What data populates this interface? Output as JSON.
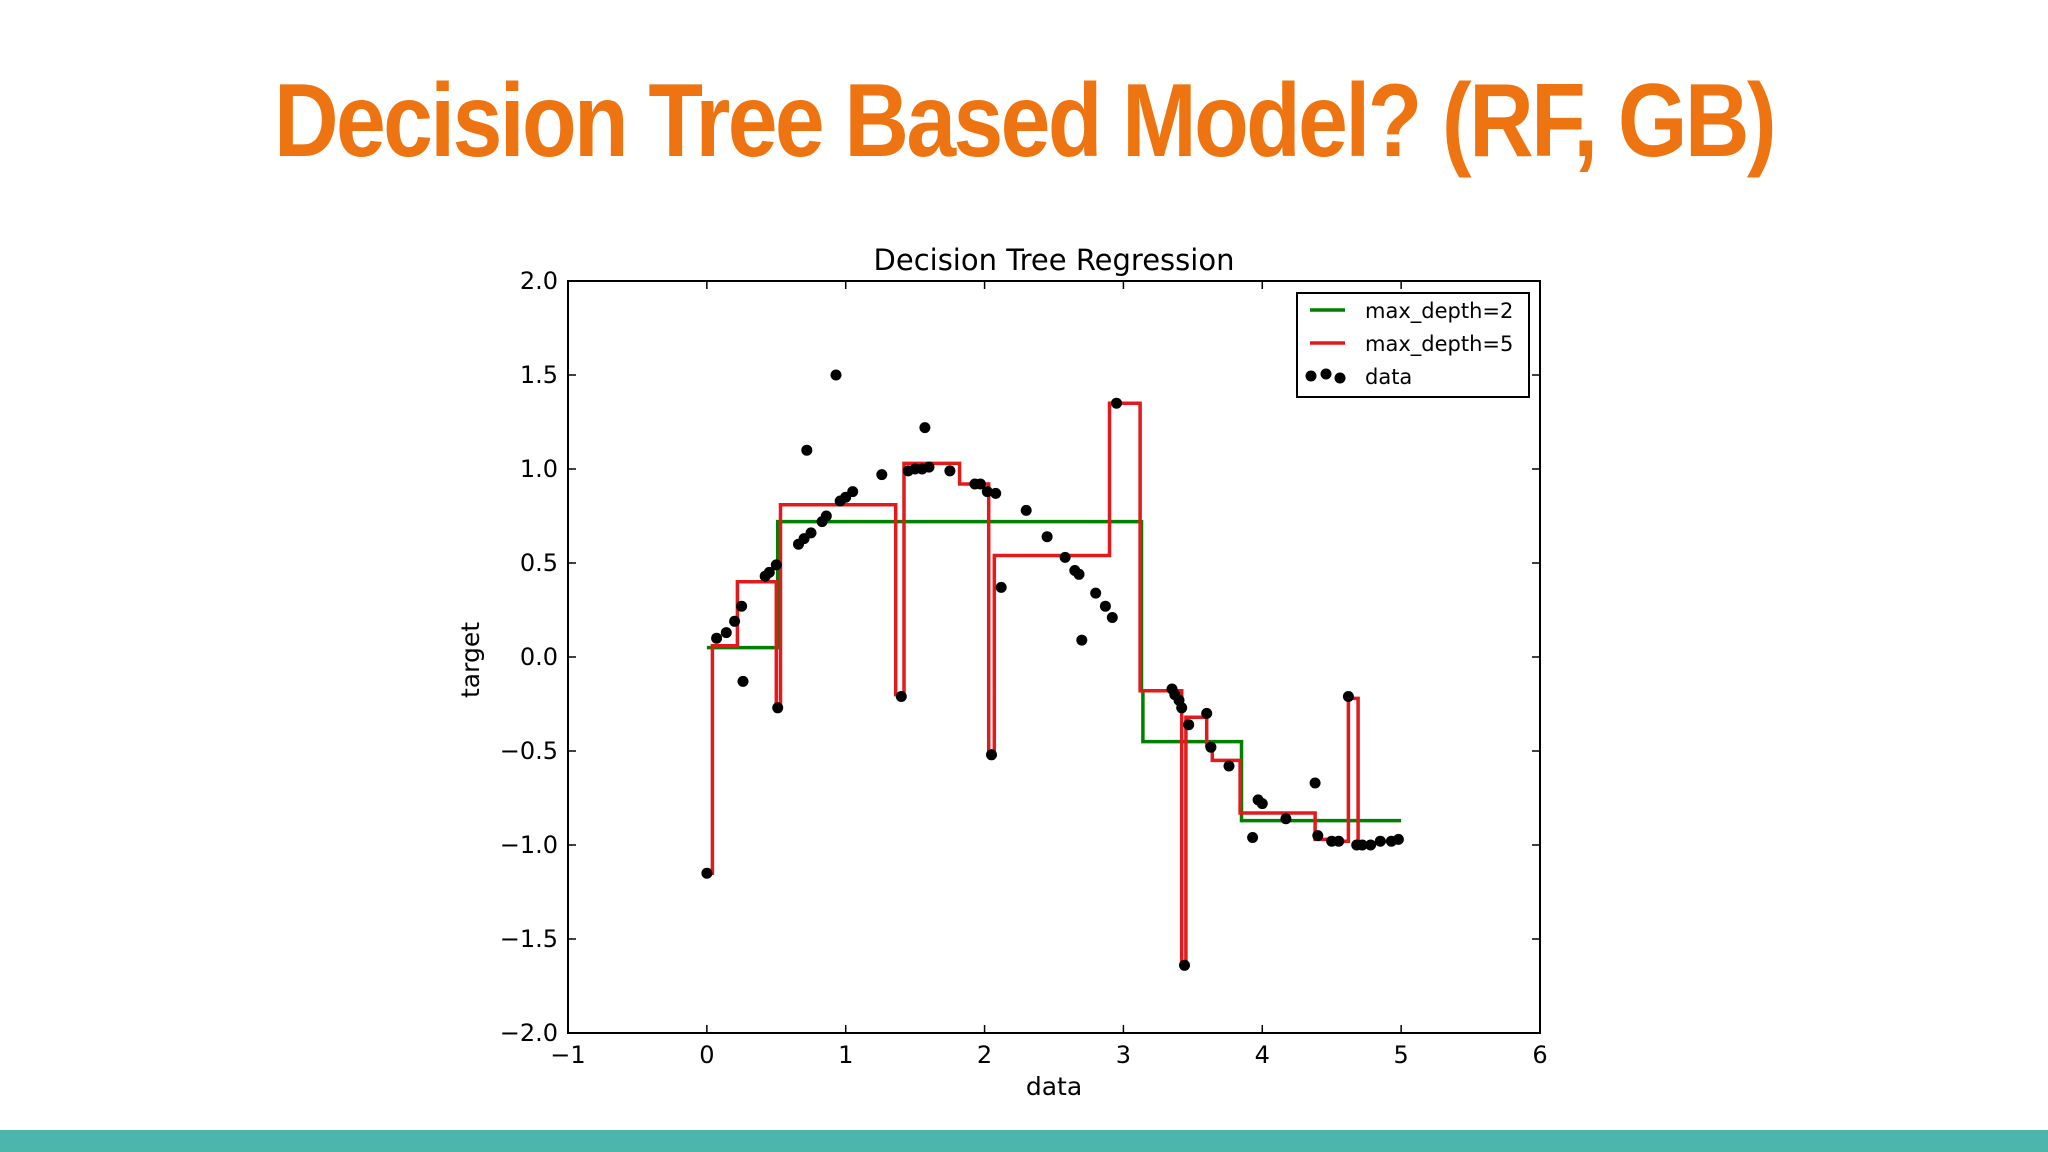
{
  "slide": {
    "title": "Decision Tree Based Model? (RF, GB)"
  },
  "colors": {
    "title": "#EE7411",
    "bottom_bar": "#4DB6AC",
    "depth2": "#008000",
    "depth5": "#E31A1C",
    "points": "#000000"
  },
  "chart_data": {
    "type": "line",
    "title": "Decision Tree Regression",
    "xlabel": "data",
    "ylabel": "target",
    "xlim": [
      -1,
      6
    ],
    "ylim": [
      -2.0,
      2.0
    ],
    "xticks": [
      "−1",
      "0",
      "1",
      "2",
      "3",
      "4",
      "5",
      "6"
    ],
    "yticks": [
      "−2.0",
      "−1.5",
      "−1.0",
      "−0.5",
      "0.0",
      "0.5",
      "1.0",
      "1.5",
      "2.0"
    ],
    "grid": false,
    "legend_position": "top-right",
    "series": [
      {
        "name": "max_depth=2",
        "kind": "step",
        "color": "#008000",
        "x": [
          0.0,
          0.51,
          0.51,
          0.52,
          0.52,
          3.13,
          3.13,
          3.14,
          3.14,
          3.85,
          3.85,
          5.0
        ],
        "y": [
          0.05,
          0.05,
          0.72,
          0.72,
          0.72,
          0.72,
          -0.18,
          -0.18,
          -0.45,
          -0.45,
          -0.87,
          -0.87
        ]
      },
      {
        "name": "max_depth=5",
        "kind": "step",
        "color": "#E31A1C",
        "x": [
          0.0,
          0.04,
          0.04,
          0.22,
          0.22,
          0.5,
          0.5,
          0.53,
          0.53,
          1.36,
          1.36,
          1.42,
          1.42,
          1.82,
          1.82,
          2.03,
          2.03,
          2.06,
          2.06,
          2.07,
          2.07,
          2.9,
          2.9,
          3.12,
          3.12,
          3.42,
          3.42,
          3.45,
          3.45,
          3.6,
          3.6,
          3.64,
          3.64,
          3.84,
          3.84,
          4.38,
          4.38,
          4.55,
          4.55,
          4.62,
          4.62,
          4.69,
          4.69,
          5.0
        ],
        "y": [
          -1.15,
          -1.15,
          0.06,
          0.06,
          0.4,
          0.4,
          -0.25,
          -0.25,
          0.81,
          0.81,
          -0.2,
          -0.2,
          1.03,
          1.03,
          0.92,
          0.92,
          -0.5,
          -0.5,
          -0.52,
          -0.52,
          0.54,
          0.54,
          1.35,
          1.35,
          -0.18,
          -0.18,
          -1.63,
          -1.63,
          -0.32,
          -0.32,
          -0.47,
          -0.47,
          -0.55,
          -0.55,
          -0.83,
          -0.83,
          -0.97,
          -0.97,
          -0.98,
          -0.98,
          -0.22,
          -0.22,
          -1.0,
          -0.97
        ]
      }
    ],
    "scatter": {
      "name": "data",
      "color": "#000000",
      "x": [
        0.0,
        0.07,
        0.14,
        0.2,
        0.25,
        0.26,
        0.42,
        0.45,
        0.5,
        0.51,
        0.66,
        0.7,
        0.72,
        0.75,
        0.83,
        0.86,
        0.93,
        0.96,
        1.0,
        1.05,
        1.26,
        1.4,
        1.45,
        1.5,
        1.55,
        1.57,
        1.6,
        1.75,
        1.93,
        1.97,
        2.02,
        2.05,
        2.08,
        2.12,
        2.3,
        2.45,
        2.58,
        2.65,
        2.68,
        2.7,
        2.8,
        2.87,
        2.92,
        2.95,
        3.35,
        3.37,
        3.4,
        3.42,
        3.44,
        3.47,
        3.6,
        3.63,
        3.76,
        3.93,
        3.97,
        4.0,
        4.17,
        4.38,
        4.4,
        4.5,
        4.55,
        4.62,
        4.68,
        4.72,
        4.78,
        4.85,
        4.93,
        4.98
      ],
      "y": [
        -1.15,
        0.1,
        0.13,
        0.19,
        0.27,
        -0.13,
        0.43,
        0.45,
        0.49,
        -0.27,
        0.6,
        0.63,
        1.1,
        0.66,
        0.72,
        0.75,
        1.5,
        0.83,
        0.85,
        0.88,
        0.97,
        -0.21,
        0.99,
        1.0,
        1.0,
        1.22,
        1.01,
        0.99,
        0.92,
        0.92,
        0.88,
        -0.52,
        0.87,
        0.37,
        0.78,
        0.64,
        0.53,
        0.46,
        0.44,
        0.09,
        0.34,
        0.27,
        0.21,
        1.35,
        -0.17,
        -0.2,
        -0.23,
        -0.27,
        -1.64,
        -0.36,
        -0.3,
        -0.48,
        -0.58,
        -0.96,
        -0.76,
        -0.78,
        -0.86,
        -0.67,
        -0.95,
        -0.98,
        -0.98,
        -0.21,
        -1.0,
        -1.0,
        -1.0,
        -0.98,
        -0.98,
        -0.97
      ]
    }
  }
}
